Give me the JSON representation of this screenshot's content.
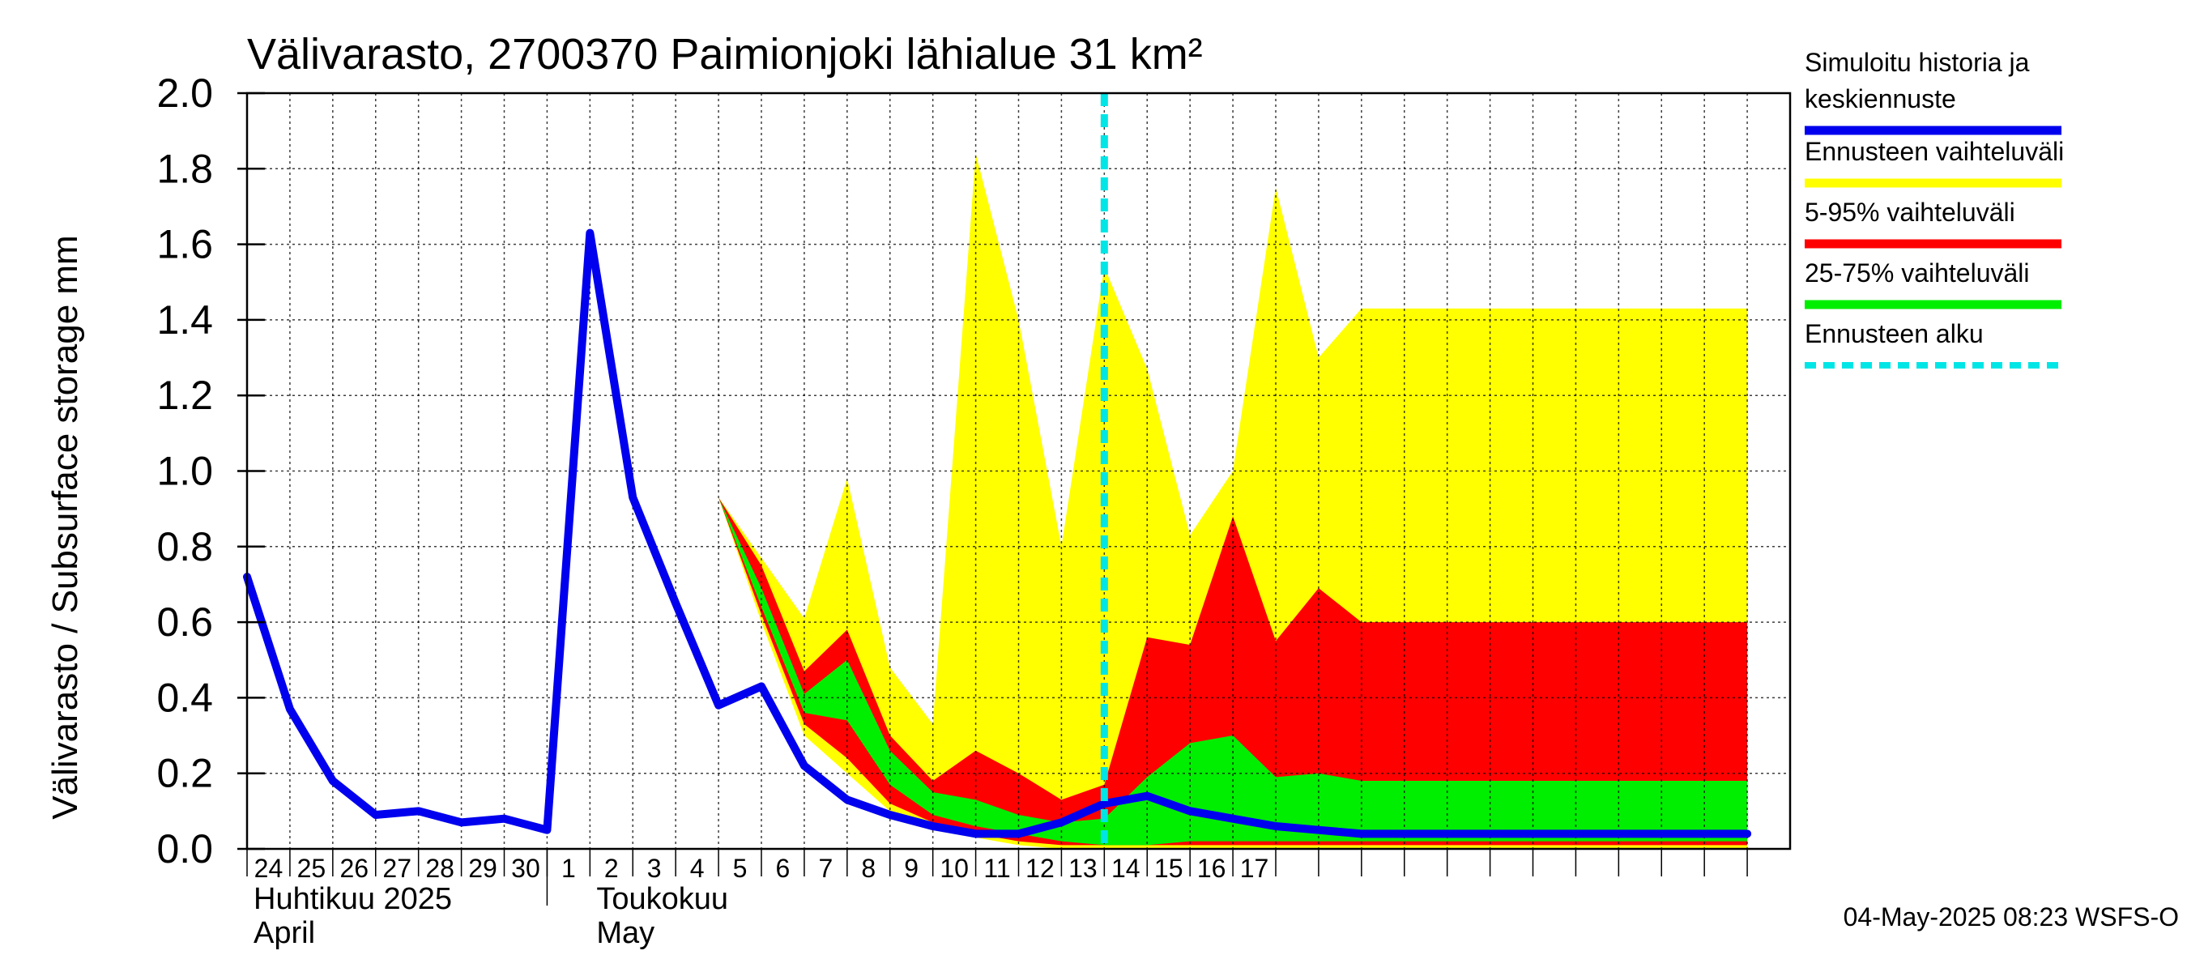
{
  "chart_data": {
    "type": "area",
    "title": "Välivarasto, 2700370 Paimionjoki lähialue 31 km²",
    "ylabel": "Välivarasto / Subsurface storage  mm",
    "xlabel": "",
    "ylim": [
      0.0,
      2.0
    ],
    "yticks": [
      "0.0",
      "0.2",
      "0.4",
      "0.6",
      "0.8",
      "1.0",
      "1.2",
      "1.4",
      "1.6",
      "1.8",
      "2.0"
    ],
    "grid": true,
    "x_days": [
      -10,
      -9,
      -8,
      -7,
      -6,
      -5,
      -4,
      -3,
      -2,
      -1,
      0,
      1,
      2,
      3,
      4,
      5,
      6,
      7,
      8,
      9,
      10,
      11,
      12,
      13,
      14,
      15,
      16,
      17,
      18,
      19,
      20,
      21,
      22,
      23,
      24,
      25
    ],
    "tick_labels": [
      "24",
      "25",
      "26",
      "27",
      "28",
      "29",
      "30",
      "1",
      "2",
      "3",
      "4",
      "5",
      "6",
      "7",
      "8",
      "9",
      "10",
      "11",
      "12",
      "13",
      "14",
      "15",
      "16",
      "17"
    ],
    "month_labels": [
      {
        "fi": "Huhtikuu  2025",
        "en": "April"
      },
      {
        "fi": "Toukokuu",
        "en": "May"
      }
    ],
    "forecast_start_day": 10.0,
    "series": [
      {
        "name": "Simuloitu historia ja keskiennuste",
        "color": "#0000ee",
        "x": [
          -10,
          -9,
          -8,
          -7,
          -6,
          -5,
          -4,
          -3,
          -2,
          -1,
          0,
          1,
          2,
          3,
          4,
          5,
          6,
          7,
          8,
          9,
          10,
          11,
          12,
          13,
          14,
          15,
          16,
          17,
          18,
          19,
          20,
          21,
          22,
          23,
          24,
          25
        ],
        "values": [
          0.72,
          0.37,
          0.18,
          0.09,
          0.1,
          0.07,
          0.08,
          0.05,
          1.63,
          0.93,
          0.65,
          0.38,
          0.43,
          0.22,
          0.13,
          0.09,
          0.06,
          0.04,
          0.04,
          0.07,
          0.12,
          0.14,
          0.1,
          0.08,
          0.06,
          0.05,
          0.04,
          0.04,
          0.04,
          0.04,
          0.04,
          0.04,
          0.04,
          0.04,
          0.04,
          0.04
        ]
      }
    ],
    "bands": [
      {
        "name": "Ennusteen vaihteluväli",
        "color": "#ffff00",
        "x": [
          1,
          2,
          3,
          4,
          5,
          6,
          7,
          8,
          9,
          10,
          11,
          12,
          13,
          14,
          15,
          16,
          17,
          18,
          19,
          20,
          21,
          22,
          23,
          24,
          25
        ],
        "upper": [
          0.93,
          0.77,
          0.61,
          0.98,
          0.48,
          0.33,
          1.84,
          1.4,
          0.8,
          1.54,
          1.27,
          0.83,
          1.0,
          1.75,
          1.3,
          1.43,
          1.43,
          1.43,
          1.43,
          1.43,
          1.43,
          1.43,
          1.43,
          1.43,
          1.43
        ],
        "lower": [
          0.93,
          0.6,
          0.3,
          0.2,
          0.1,
          0.06,
          0.03,
          0.01,
          0.0,
          0.0,
          0.0,
          0.0,
          0.0,
          0.0,
          0.0,
          0.0,
          0.0,
          0.0,
          0.0,
          0.0,
          0.0,
          0.0,
          0.0,
          0.0,
          0.0
        ]
      },
      {
        "name": "5-95% vaihteluväli",
        "color": "#ff0000",
        "x": [
          1,
          2,
          3,
          4,
          5,
          6,
          7,
          8,
          9,
          10,
          11,
          12,
          13,
          14,
          15,
          16,
          17,
          18,
          19,
          20,
          21,
          22,
          23,
          24,
          25
        ],
        "upper": [
          0.93,
          0.75,
          0.47,
          0.58,
          0.3,
          0.18,
          0.26,
          0.2,
          0.13,
          0.17,
          0.56,
          0.54,
          0.88,
          0.55,
          0.69,
          0.6,
          0.6,
          0.6,
          0.6,
          0.6,
          0.6,
          0.6,
          0.6,
          0.6,
          0.6
        ],
        "lower": [
          0.93,
          0.62,
          0.33,
          0.24,
          0.12,
          0.07,
          0.04,
          0.02,
          0.01,
          0.01,
          0.01,
          0.01,
          0.01,
          0.01,
          0.01,
          0.01,
          0.01,
          0.01,
          0.01,
          0.01,
          0.01,
          0.01,
          0.01,
          0.01,
          0.01
        ]
      },
      {
        "name": "25-75% vaihteluväli",
        "color": "#00ee00",
        "x": [
          1,
          2,
          3,
          4,
          5,
          6,
          7,
          8,
          9,
          10,
          11,
          12,
          13,
          14,
          15,
          16,
          17,
          18,
          19,
          20,
          21,
          22,
          23,
          24,
          25
        ],
        "upper": [
          0.93,
          0.69,
          0.41,
          0.5,
          0.26,
          0.15,
          0.13,
          0.09,
          0.07,
          0.08,
          0.19,
          0.28,
          0.3,
          0.19,
          0.2,
          0.18,
          0.18,
          0.18,
          0.18,
          0.18,
          0.18,
          0.18,
          0.18,
          0.18,
          0.18
        ],
        "lower": [
          0.93,
          0.64,
          0.36,
          0.34,
          0.17,
          0.09,
          0.06,
          0.04,
          0.02,
          0.01,
          0.01,
          0.02,
          0.02,
          0.02,
          0.02,
          0.02,
          0.02,
          0.02,
          0.02,
          0.02,
          0.02,
          0.02,
          0.02,
          0.02,
          0.02
        ]
      }
    ],
    "legend": {
      "placement": "right",
      "entries": [
        {
          "label_lines": [
            "Simuloitu historia ja",
            "keskiennuste"
          ],
          "color": "#0000ee",
          "style": "solid"
        },
        {
          "label_lines": [
            "Ennusteen vaihteluväli"
          ],
          "color": "#ffff00",
          "style": "solid"
        },
        {
          "label_lines": [
            "5-95% vaihteluväli"
          ],
          "color": "#ff0000",
          "style": "solid"
        },
        {
          "label_lines": [
            "25-75% vaihteluväli"
          ],
          "color": "#00ee00",
          "style": "solid"
        },
        {
          "label_lines": [
            "Ennusteen alku"
          ],
          "color": "#00e5e5",
          "style": "dashed"
        }
      ]
    },
    "footer": "04-May-2025 08:23 WSFS-O"
  }
}
